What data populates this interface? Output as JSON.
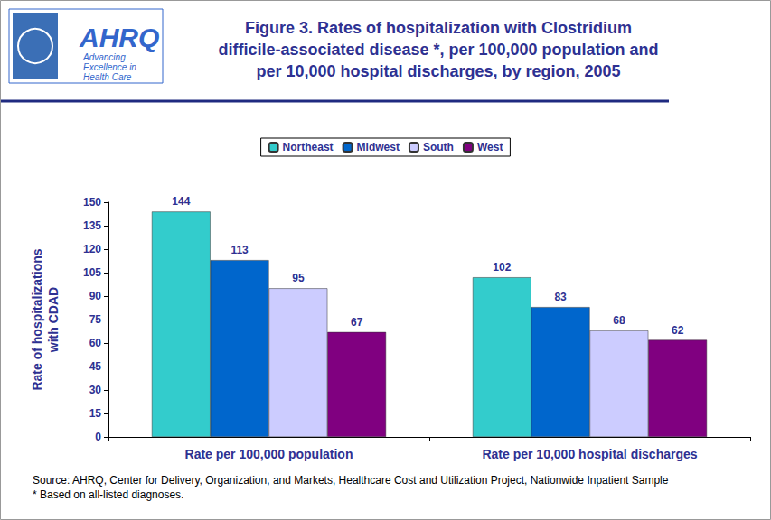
{
  "chart_data": {
    "type": "bar",
    "title": "Figure 3. Rates of hospitalization with Clostridium\ndifficile-associated disease *, per 100,000 population and\nper 10,000 hospital discharges, by region, 2005",
    "y_label": "Rate of hospitalizations\nwith CDAD",
    "categories": [
      "Rate per 100,000 population",
      "Rate per 10,000 hospital discharges"
    ],
    "series": [
      {
        "name": "Northeast",
        "color": "#33cccc",
        "values": [
          144,
          102
        ]
      },
      {
        "name": "Midwest",
        "color": "#0066cc",
        "values": [
          113,
          83
        ]
      },
      {
        "name": "South",
        "color": "#ccccff",
        "values": [
          95,
          68
        ]
      },
      {
        "name": "West",
        "color": "#800080",
        "values": [
          67,
          62
        ]
      }
    ],
    "ylim": [
      0,
      150
    ],
    "yticks": [
      0,
      15,
      30,
      45,
      60,
      75,
      90,
      105,
      120,
      135,
      150
    ],
    "grid": false,
    "legend": "top",
    "data_labels": true,
    "annotations": [
      "Source: AHRQ, Center for Delivery, Organization, and Markets, Healthcare Cost and Utilization Project, Nationwide Inpatient Sample",
      "* Based on all-listed diagnoses."
    ]
  },
  "logo": {
    "name": "AHRQ",
    "tagline": "Advancing\nExcellence in\nHealth Care"
  }
}
